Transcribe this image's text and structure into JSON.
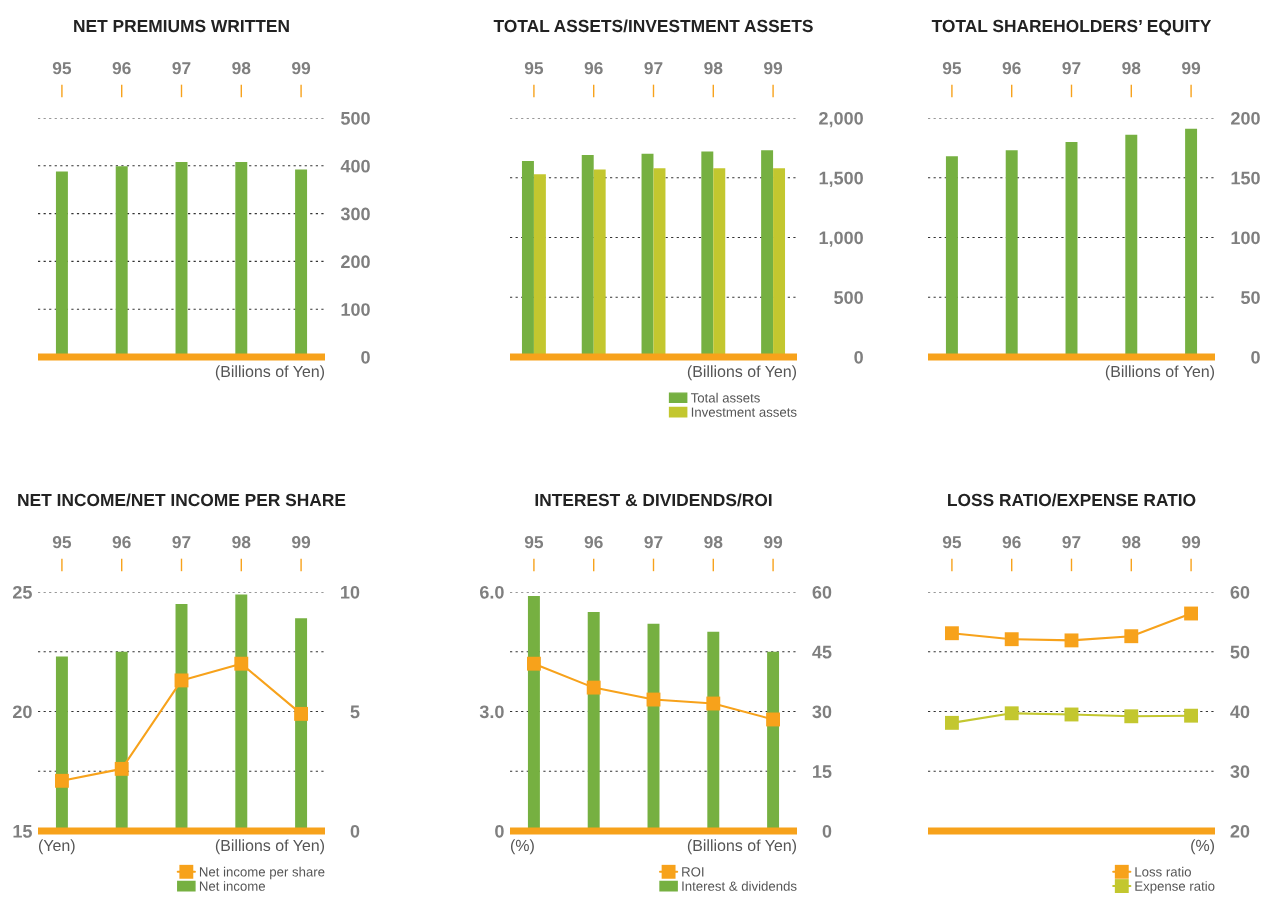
{
  "chart_data": [
    {
      "type": "bar",
      "title": "NET PREMIUMS WRITTEN",
      "categories": [
        "95",
        "96",
        "97",
        "98",
        "99"
      ],
      "values": [
        388,
        399,
        408,
        408,
        392
      ],
      "color": "#76b041",
      "ylim": [
        0,
        500
      ],
      "yticks": [
        0,
        100,
        200,
        300,
        400,
        500
      ],
      "annotations": [
        "(Billions of Yen)"
      ],
      "grid": "y"
    },
    {
      "type": "bar",
      "title": "TOTAL ASSETS/INVESTMENT ASSETS",
      "categories": [
        "95",
        "96",
        "97",
        "98",
        "99"
      ],
      "series": [
        {
          "name": "Total assets",
          "color": "#76b041",
          "values": [
            1640,
            1690,
            1700,
            1720,
            1730
          ]
        },
        {
          "name": "Investment assets",
          "color": "#c3c72f",
          "values": [
            1530,
            1570,
            1580,
            1580,
            1580
          ]
        }
      ],
      "ylim": [
        0,
        2000
      ],
      "yticks": [
        0,
        {
          "value": 500,
          "label": "500"
        },
        {
          "value": 1000,
          "label": "1,000"
        },
        {
          "value": 1500,
          "label": "1,500"
        },
        {
          "value": 2000,
          "label": "2,000"
        }
      ],
      "annotations": [
        "(Billions of Yen)"
      ],
      "grid": "y",
      "legend": "bottom right"
    },
    {
      "type": "bar",
      "title": "TOTAL SHAREHOLDERS’ EQUITY",
      "categories": [
        "95",
        "96",
        "97",
        "98",
        "99"
      ],
      "values": [
        168,
        173,
        180,
        186,
        191
      ],
      "color": "#76b041",
      "ylim": [
        0,
        200
      ],
      "yticks": [
        0,
        50,
        100,
        150,
        200
      ],
      "annotations": [
        "(Billions of Yen)"
      ],
      "grid": "y"
    },
    {
      "type": "bar",
      "title": "NET INCOME/NET INCOME PER SHARE",
      "categories": [
        "95",
        "96",
        "97",
        "98",
        "99"
      ],
      "series": [
        {
          "name": "Net income per share",
          "type": "line",
          "axis": "y2",
          "color": "#f7a21b",
          "values": [
            17.1,
            17.6,
            21.3,
            22.0,
            19.9
          ]
        },
        {
          "name": "Net income",
          "color": "#76b041",
          "values": [
            7.3,
            7.5,
            9.5,
            9.9,
            8.9
          ]
        }
      ],
      "ylim": [
        0,
        10
      ],
      "yticks": [
        0,
        {
          "value": 2.5,
          "label": null
        },
        5,
        {
          "value": 7.5,
          "label": null
        },
        10
      ],
      "y2lim": [
        15,
        25
      ],
      "y2ticks": [
        15,
        20,
        25
      ],
      "annotations": [
        "(Yen)",
        "(Billions of Yen)"
      ],
      "marker": "square",
      "line_style": "solid",
      "grid": "y",
      "legend": "bottom right"
    },
    {
      "type": "bar",
      "title": "INTEREST & DIVIDENDS/ROI",
      "categories": [
        "95",
        "96",
        "97",
        "98",
        "99"
      ],
      "series": [
        {
          "name": "ROI",
          "type": "line",
          "axis": "y2",
          "color": "#f7a21b",
          "values": [
            4.2,
            3.6,
            3.3,
            3.2,
            2.8
          ]
        },
        {
          "name": "Interest & dividends",
          "color": "#76b041",
          "values": [
            59,
            55,
            52,
            50,
            45
          ]
        }
      ],
      "ylim": [
        0,
        60
      ],
      "yticks": [
        0,
        15,
        30,
        45,
        60
      ],
      "y2lim": [
        0,
        6
      ],
      "y2ticks": [
        0,
        {
          "value": 3,
          "label": "3.0"
        },
        {
          "value": 6,
          "label": "6.0"
        }
      ],
      "annotations": [
        "(%)",
        "(Billions of Yen)"
      ],
      "marker": "square",
      "line_style": "solid",
      "grid": "y",
      "legend": "bottom right"
    },
    {
      "type": "line",
      "title": "LOSS RATIO/EXPENSE RATIO",
      "categories": [
        "95",
        "96",
        "97",
        "98",
        "99"
      ],
      "series": [
        {
          "name": "Loss ratio",
          "color": "#f7a21b",
          "values": [
            53.1,
            52.1,
            51.9,
            52.6,
            56.4
          ]
        },
        {
          "name": "Expense ratio",
          "color": "#c3c72f",
          "values": [
            38.1,
            39.7,
            39.5,
            39.2,
            39.3
          ]
        }
      ],
      "ylim": [
        20,
        60
      ],
      "yticks": [
        20,
        30,
        40,
        50,
        60
      ],
      "annotations": [
        "(%)"
      ],
      "marker": "square",
      "line_style": "solid",
      "grid": "y",
      "legend": "bottom right"
    }
  ]
}
